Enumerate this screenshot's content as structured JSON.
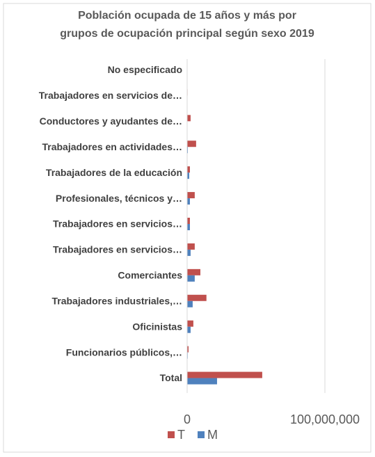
{
  "chart_data": {
    "type": "hbar",
    "title": [
      "Población ocupada de 15 años y más por",
      "grupos de ocupación principal según sexo 2019"
    ],
    "categories": [
      "No especificado",
      "Trabajadores en servicios de…",
      "Conductores y ayudantes de…",
      "Trabajadores en actividades…",
      "Trabajadores de la educación",
      "Profesionales, técnicos y…",
      "Trabajadores en servicios…",
      "Trabajadores en servicios…",
      "Comerciantes",
      "Trabajadores industriales,…",
      "Oficinistas",
      "Funcionarios públicos,…",
      "Total"
    ],
    "series": [
      {
        "name": "T",
        "color": "#c0504d",
        "values": [
          100000,
          300000,
          2500000,
          6500000,
          2000000,
          5500000,
          2000000,
          5500000,
          9600000,
          14000000,
          4500000,
          1000000,
          54500000
        ]
      },
      {
        "name": "M",
        "color": "#4f81bd",
        "values": [
          50000,
          100000,
          100000,
          500000,
          1500000,
          2000000,
          2000000,
          2500000,
          5500000,
          4000000,
          2500000,
          400000,
          21700000
        ]
      }
    ],
    "xlim": [
      0,
      100000000
    ],
    "xticks": [
      0,
      {
        "value": 100000000,
        "label": "100,000,000"
      }
    ],
    "grid": true,
    "legend": "bottom"
  }
}
